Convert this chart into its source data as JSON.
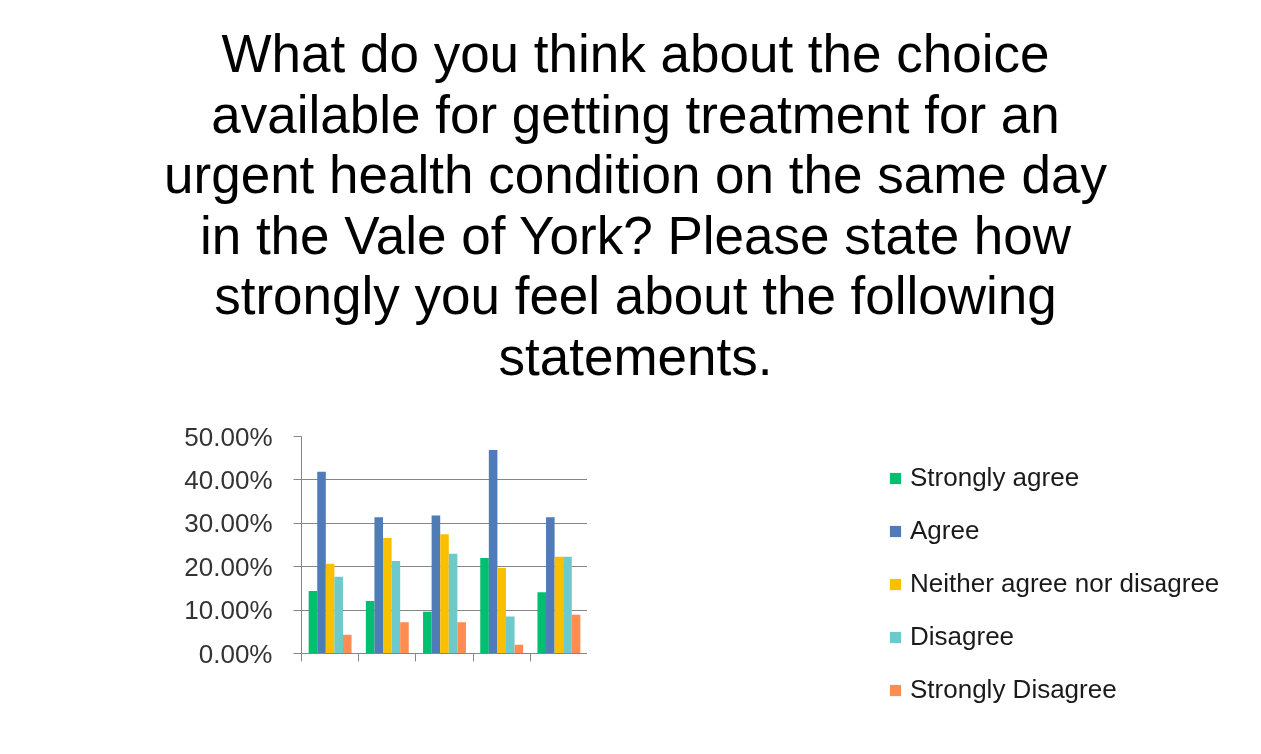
{
  "chart_data": {
    "type": "bar",
    "title": "What do you think about the choice available for getting treatment for an urgent health condition on the same day in the Vale of York? Please state how strongly you feel about the following statements.",
    "categories": [
      null,
      null,
      null,
      null,
      null
    ],
    "series": [
      {
        "name": "Strongly agree",
        "color": "#00bf6f",
        "values": [
          14.4,
          12.1,
          9.6,
          22.0,
          14.1
        ]
      },
      {
        "name": "Agree",
        "color": "#4f7bb6",
        "values": [
          41.9,
          31.4,
          31.8,
          46.9,
          31.4
        ]
      },
      {
        "name": "Neither agree nor disagree",
        "color": "#fac000",
        "values": [
          20.7,
          26.6,
          27.5,
          19.7,
          22.3
        ]
      },
      {
        "name": "Disagree",
        "color": "#6dcacc",
        "values": [
          17.7,
          21.3,
          23.0,
          8.5,
          22.3
        ]
      },
      {
        "name": "Strongly Disagree",
        "color": "#ff8c50",
        "values": [
          4.3,
          7.2,
          7.2,
          2.0,
          8.9
        ]
      }
    ],
    "ylim": [
      0,
      50
    ],
    "yticks": [
      {
        "value": 0,
        "label": "0.00%"
      },
      {
        "value": 10,
        "label": "10.00%"
      },
      {
        "value": 20,
        "label": "20.00%"
      },
      {
        "value": 30,
        "label": "30.00%"
      },
      {
        "value": 40,
        "label": "40.00%"
      },
      {
        "value": 50,
        "label": "50.00%"
      }
    ],
    "grid": "y",
    "legend": "right"
  }
}
